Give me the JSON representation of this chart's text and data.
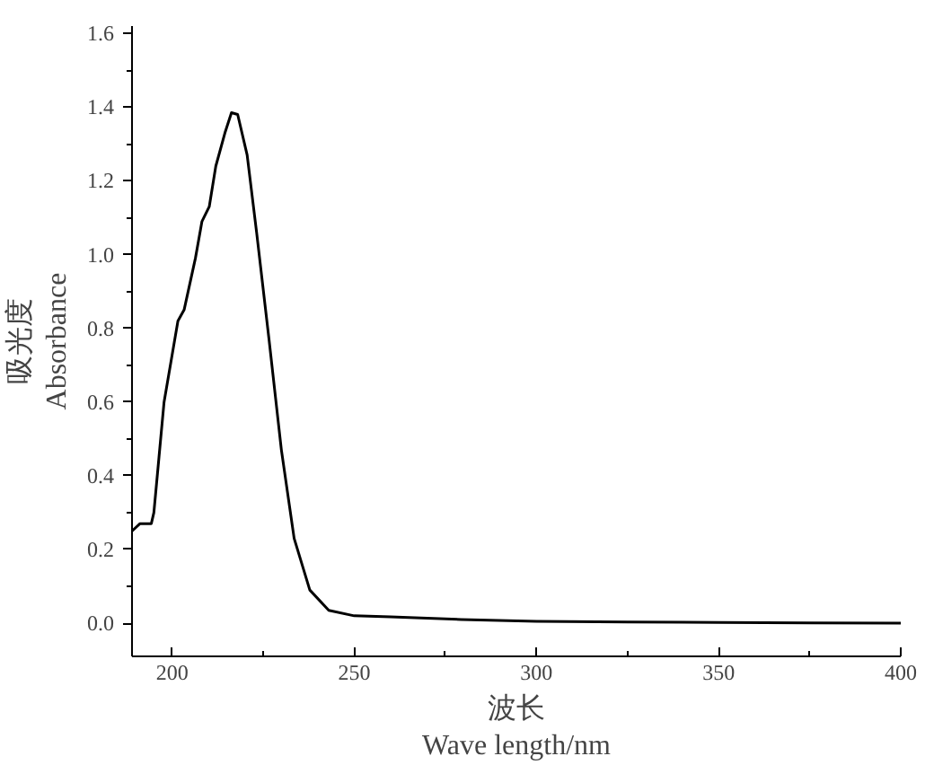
{
  "chart_data": {
    "type": "line",
    "xlabel": "波长\nWave length/nm",
    "ylabel": "吸光度\nAbsorbance",
    "x": [
      189,
      191.2,
      194.3,
      195,
      197.8,
      201.6,
      203.3,
      206.4,
      208.2,
      210.2,
      212,
      214.5,
      216.3,
      218,
      220.6,
      223.2,
      226.6,
      230,
      233.5,
      237.8,
      243,
      250,
      260,
      279.4,
      300,
      325,
      350,
      375,
      400
    ],
    "series": [
      {
        "color": "#000000",
        "values": [
          0.25,
          0.27,
          0.27,
          0.3,
          0.6,
          0.82,
          0.85,
          0.99,
          1.09,
          1.13,
          1.24,
          1.33,
          1.385,
          1.38,
          1.27,
          1.06,
          0.77,
          0.47,
          0.23,
          0.09,
          0.035,
          0.02,
          0.017,
          0.01,
          0.005,
          0.003,
          0.002,
          0.001,
          0.0
        ]
      }
    ],
    "xlim": [
      189,
      400
    ],
    "ylim": [
      -0.09,
      1.62
    ],
    "xticks": [
      200,
      {
        "value": 225,
        "label": null
      },
      250,
      {
        "value": 275,
        "label": null
      },
      300,
      {
        "value": 325,
        "label": null
      },
      350,
      {
        "value": 375,
        "label": null
      },
      400
    ],
    "yticks": [
      {
        "value": 0,
        "label": "0.0"
      },
      {
        "value": 0.1,
        "label": null
      },
      {
        "value": 0.2,
        "label": "0.2"
      },
      {
        "value": 0.3,
        "label": null
      },
      {
        "value": 0.4,
        "label": "0.4"
      },
      {
        "value": 0.5,
        "label": null
      },
      {
        "value": 0.6,
        "label": "0.6"
      },
      {
        "value": 0.7,
        "label": null
      },
      {
        "value": 0.8,
        "label": "0.8"
      },
      {
        "value": 0.9,
        "label": null
      },
      {
        "value": 1.0,
        "label": "1.0"
      },
      {
        "value": 1.1,
        "label": null
      },
      {
        "value": 1.2,
        "label": "1.2"
      },
      {
        "value": 1.3,
        "label": null
      },
      {
        "value": 1.4,
        "label": "1.4"
      },
      {
        "value": 1.5,
        "label": null
      },
      {
        "value": 1.6,
        "label": "1.6"
      }
    ],
    "grid": false,
    "line_style": "solid",
    "marker": "none"
  }
}
